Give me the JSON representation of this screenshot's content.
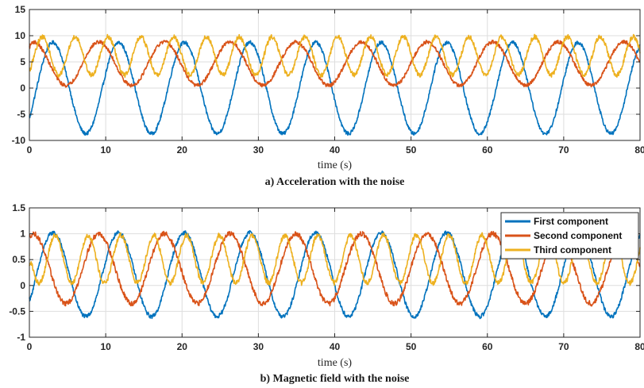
{
  "colors": {
    "first": "#0072BD",
    "second": "#D95319",
    "third": "#EDB120",
    "grid": "#dedede",
    "axis": "#262626"
  },
  "chart_data": [
    {
      "type": "line",
      "caption": "a) Acceleration with the noise",
      "xlabel": "time (s)",
      "ylabel": "",
      "xlim": [
        0,
        80
      ],
      "ylim": [
        -10,
        15
      ],
      "xticks": [
        0,
        10,
        20,
        30,
        40,
        50,
        60,
        70,
        80
      ],
      "yticks": [
        -10,
        -5,
        0,
        5,
        10,
        15
      ],
      "grid": true,
      "legend": false,
      "series": [
        {
          "key": "first",
          "period_s": 8.6,
          "peak_times_s": [
            3.1,
            11.7,
            20.3,
            28.9,
            37.5,
            46.1,
            54.7,
            63.3,
            71.9,
            80.5
          ],
          "min": -8.7,
          "max": 8.7,
          "start_value": -5.5,
          "noise": 0.35
        },
        {
          "key": "second",
          "period_s": 8.6,
          "peak_times_s": [
            0.5,
            9.1,
            17.7,
            26.3,
            34.9,
            43.5,
            52.1,
            60.7,
            69.3,
            77.9
          ],
          "min": 0.5,
          "max": 8.8,
          "start_value": 7.8,
          "noise": 0.35
        },
        {
          "key": "third",
          "period_s": 4.3,
          "peak_times_s": [
            1.7,
            6.0,
            10.3,
            14.6,
            18.9,
            23.2,
            27.5,
            31.8,
            36.1,
            40.4,
            44.7,
            49.0,
            53.3,
            57.6,
            61.9,
            66.2,
            70.5,
            74.8,
            79.1
          ],
          "min": 2.5,
          "max": 9.8,
          "start_value": 3.5,
          "noise": 0.45
        }
      ]
    },
    {
      "type": "line",
      "caption": "b) Magnetic field with the noise",
      "xlabel": "time (s)",
      "ylabel": "",
      "xlim": [
        0,
        80
      ],
      "ylim": [
        -1,
        1.5
      ],
      "xticks": [
        0,
        10,
        20,
        30,
        40,
        50,
        60,
        70,
        80
      ],
      "yticks": [
        -1,
        -0.5,
        0,
        0.5,
        1,
        1.5
      ],
      "grid": true,
      "legend": true,
      "legend_position": "top-right",
      "series": [
        {
          "key": "first",
          "name": "First component",
          "period_s": 8.6,
          "peak_times_s": [
            3.1,
            11.7,
            20.3,
            28.9,
            37.5,
            46.1,
            54.7,
            63.3,
            71.9,
            80.5
          ],
          "min": -0.6,
          "max": 1.02,
          "start_value": -0.25,
          "noise": 0.04
        },
        {
          "key": "second",
          "name": "Second component",
          "period_s": 8.6,
          "peak_times_s": [
            0.5,
            9.1,
            17.7,
            26.3,
            34.9,
            43.5,
            52.1,
            60.7,
            69.3,
            77.9
          ],
          "min": -0.35,
          "max": 1.0,
          "start_value": 0.95,
          "noise": 0.05
        },
        {
          "key": "third",
          "name": "Third component",
          "period_s": 4.3,
          "peak_times_s": [
            3.4,
            7.7,
            12.0,
            16.3,
            20.6,
            24.9,
            29.2,
            33.5,
            37.8,
            42.1,
            46.4,
            50.7,
            55.0,
            59.3,
            63.6,
            67.9,
            72.2,
            76.5,
            80.8
          ],
          "min": 0.05,
          "max": 0.97,
          "start_value": 0.35,
          "noise": 0.05
        }
      ]
    }
  ]
}
